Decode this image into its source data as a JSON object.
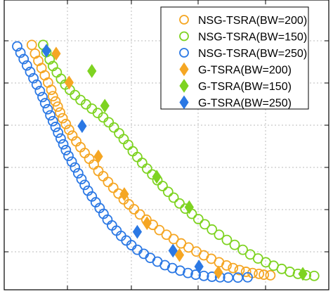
{
  "chart_data": {
    "type": "scatter",
    "title": "",
    "xlabel": "",
    "ylabel": "",
    "xlim": [
      0,
      1
    ],
    "ylim": [
      0,
      1
    ],
    "grid": true,
    "legend_position": "top-right",
    "series": [
      {
        "name": "NSG-TSRA(BW=200)",
        "marker": "circle-open",
        "color": "#f5a623",
        "points": [
          [
            0.085,
            0.845
          ],
          [
            0.095,
            0.815
          ],
          [
            0.105,
            0.79
          ],
          [
            0.115,
            0.765
          ],
          [
            0.125,
            0.74
          ],
          [
            0.135,
            0.715
          ],
          [
            0.145,
            0.69
          ],
          [
            0.15,
            0.668
          ],
          [
            0.158,
            0.65
          ],
          [
            0.165,
            0.632
          ],
          [
            0.172,
            0.612
          ],
          [
            0.18,
            0.592
          ],
          [
            0.19,
            0.572
          ],
          [
            0.2,
            0.552
          ],
          [
            0.21,
            0.532
          ],
          [
            0.222,
            0.512
          ],
          [
            0.235,
            0.492
          ],
          [
            0.248,
            0.472
          ],
          [
            0.262,
            0.452
          ],
          [
            0.276,
            0.432
          ],
          [
            0.29,
            0.41
          ],
          [
            0.305,
            0.392
          ],
          [
            0.32,
            0.372
          ],
          [
            0.336,
            0.352
          ],
          [
            0.352,
            0.332
          ],
          [
            0.368,
            0.312
          ],
          [
            0.384,
            0.295
          ],
          [
            0.4,
            0.278
          ],
          [
            0.418,
            0.26
          ],
          [
            0.438,
            0.242
          ],
          [
            0.458,
            0.224
          ],
          [
            0.478,
            0.206
          ],
          [
            0.5,
            0.19
          ],
          [
            0.522,
            0.175
          ],
          [
            0.545,
            0.16
          ],
          [
            0.568,
            0.146
          ],
          [
            0.592,
            0.132
          ],
          [
            0.615,
            0.119
          ],
          [
            0.638,
            0.107
          ],
          [
            0.662,
            0.095
          ],
          [
            0.685,
            0.084
          ],
          [
            0.705,
            0.075
          ],
          [
            0.725,
            0.068
          ],
          [
            0.745,
            0.062
          ],
          [
            0.765,
            0.058
          ],
          [
            0.785,
            0.055
          ],
          [
            0.8,
            0.052
          ],
          [
            0.82,
            0.05
          ]
        ]
      },
      {
        "name": "NSG-TSRA(BW=150)",
        "marker": "circle-open",
        "color": "#7ed321",
        "points": [
          [
            0.12,
            0.845
          ],
          [
            0.13,
            0.82
          ],
          [
            0.14,
            0.795
          ],
          [
            0.15,
            0.772
          ],
          [
            0.162,
            0.75
          ],
          [
            0.175,
            0.728
          ],
          [
            0.188,
            0.708
          ],
          [
            0.202,
            0.69
          ],
          [
            0.218,
            0.672
          ],
          [
            0.235,
            0.655
          ],
          [
            0.252,
            0.64
          ],
          [
            0.27,
            0.625
          ],
          [
            0.288,
            0.61
          ],
          [
            0.305,
            0.595
          ],
          [
            0.322,
            0.578
          ],
          [
            0.338,
            0.56
          ],
          [
            0.354,
            0.54
          ],
          [
            0.368,
            0.52
          ],
          [
            0.382,
            0.5
          ],
          [
            0.396,
            0.478
          ],
          [
            0.41,
            0.458
          ],
          [
            0.425,
            0.438
          ],
          [
            0.44,
            0.418
          ],
          [
            0.456,
            0.398
          ],
          [
            0.472,
            0.378
          ],
          [
            0.488,
            0.358
          ],
          [
            0.505,
            0.338
          ],
          [
            0.522,
            0.318
          ],
          [
            0.54,
            0.298
          ],
          [
            0.558,
            0.28
          ],
          [
            0.578,
            0.262
          ],
          [
            0.598,
            0.244
          ],
          [
            0.618,
            0.226
          ],
          [
            0.64,
            0.208
          ],
          [
            0.662,
            0.19
          ],
          [
            0.686,
            0.172
          ],
          [
            0.71,
            0.155
          ],
          [
            0.735,
            0.138
          ],
          [
            0.758,
            0.122
          ],
          [
            0.782,
            0.108
          ],
          [
            0.806,
            0.095
          ],
          [
            0.83,
            0.083
          ],
          [
            0.855,
            0.072
          ],
          [
            0.88,
            0.062
          ],
          [
            0.905,
            0.055
          ],
          [
            0.93,
            0.05
          ],
          [
            0.955,
            0.048
          ]
        ]
      },
      {
        "name": "NSG-TSRA(BW=250)",
        "marker": "circle-open",
        "color": "#2b78e4",
        "points": [
          [
            0.04,
            0.84
          ],
          [
            0.05,
            0.818
          ],
          [
            0.06,
            0.796
          ],
          [
            0.07,
            0.774
          ],
          [
            0.08,
            0.752
          ],
          [
            0.09,
            0.73
          ],
          [
            0.1,
            0.708
          ],
          [
            0.11,
            0.686
          ],
          [
            0.118,
            0.665
          ],
          [
            0.126,
            0.644
          ],
          [
            0.134,
            0.623
          ],
          [
            0.142,
            0.602
          ],
          [
            0.15,
            0.582
          ],
          [
            0.158,
            0.562
          ],
          [
            0.166,
            0.542
          ],
          [
            0.174,
            0.522
          ],
          [
            0.182,
            0.502
          ],
          [
            0.19,
            0.482
          ],
          [
            0.198,
            0.462
          ],
          [
            0.208,
            0.442
          ],
          [
            0.218,
            0.422
          ],
          [
            0.228,
            0.402
          ],
          [
            0.238,
            0.382
          ],
          [
            0.248,
            0.362
          ],
          [
            0.258,
            0.342
          ],
          [
            0.27,
            0.322
          ],
          [
            0.282,
            0.302
          ],
          [
            0.294,
            0.282
          ],
          [
            0.306,
            0.262
          ],
          [
            0.318,
            0.242
          ],
          [
            0.332,
            0.222
          ],
          [
            0.346,
            0.204
          ],
          [
            0.36,
            0.186
          ],
          [
            0.376,
            0.17
          ],
          [
            0.392,
            0.154
          ],
          [
            0.41,
            0.138
          ],
          [
            0.43,
            0.124
          ],
          [
            0.45,
            0.11
          ],
          [
            0.472,
            0.097
          ],
          [
            0.495,
            0.085
          ],
          [
            0.518,
            0.075
          ],
          [
            0.542,
            0.066
          ],
          [
            0.566,
            0.058
          ],
          [
            0.59,
            0.052
          ],
          [
            0.615,
            0.048
          ],
          [
            0.64,
            0.045
          ],
          [
            0.665,
            0.043
          ],
          [
            0.69,
            0.042
          ],
          [
            0.72,
            0.042
          ],
          [
            0.75,
            0.043
          ]
        ]
      },
      {
        "name": "G-TSRA(BW=200)",
        "marker": "diamond-filled",
        "color": "#f5a623",
        "points": [
          [
            0.16,
            0.815
          ],
          [
            0.2,
            0.715
          ],
          [
            0.29,
            0.46
          ],
          [
            0.37,
            0.33
          ],
          [
            0.44,
            0.23
          ],
          [
            0.54,
            0.12
          ],
          [
            0.66,
            0.06
          ]
        ]
      },
      {
        "name": "G-TSRA(BW=150)",
        "marker": "diamond-filled",
        "color": "#7ed321",
        "points": [
          [
            0.27,
            0.755
          ],
          [
            0.31,
            0.635
          ],
          [
            0.47,
            0.39
          ],
          [
            0.57,
            0.285
          ],
          [
            0.92,
            0.055
          ]
        ]
      },
      {
        "name": "G-TSRA(BW=250)",
        "marker": "diamond-filled",
        "color": "#2b78e4",
        "points": [
          [
            0.13,
            0.825
          ],
          [
            0.24,
            0.565
          ],
          [
            0.41,
            0.2
          ],
          [
            0.52,
            0.135
          ],
          [
            0.6,
            0.08
          ]
        ]
      }
    ]
  }
}
